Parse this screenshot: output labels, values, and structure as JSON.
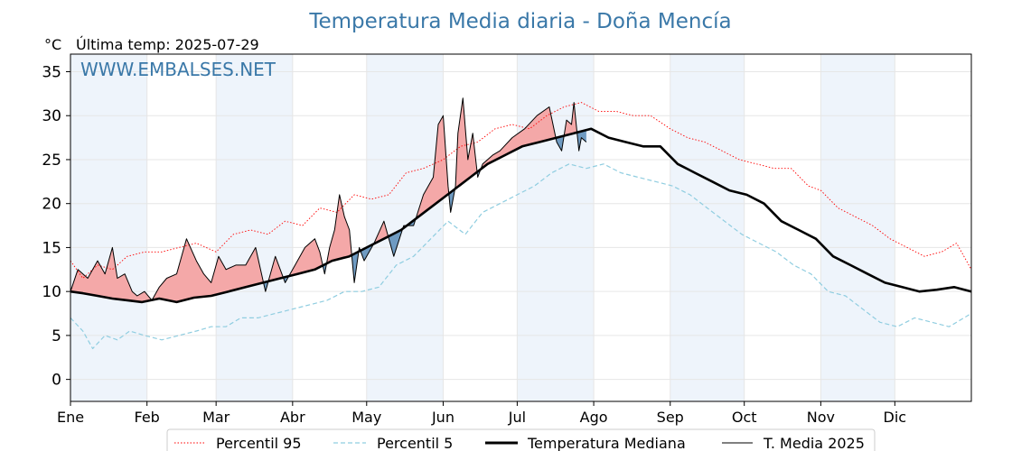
{
  "title": "Temperatura Media diaria - Doña Mencía",
  "unit": "°C",
  "last_temp": "Última temp: 2025-07-29",
  "watermark": "WWW.EMBALSES.NET",
  "colors": {
    "p95": "#ff0000",
    "p5": "#8fcde0",
    "median": "#000000",
    "year": "#000000",
    "above_fill": "#f4a8a8",
    "below_fill": "#6f9bc2",
    "band": "#eef4fb"
  },
  "chart_data": {
    "type": "line",
    "xlabel": "",
    "ylabel": "",
    "ylim": [
      -2.5,
      37
    ],
    "xlim": [
      1,
      366
    ],
    "grid": true,
    "legend_position": "bottom",
    "y_ticks": [
      0,
      5,
      10,
      15,
      20,
      25,
      30,
      35
    ],
    "months": [
      {
        "label": "Ene",
        "day": 1
      },
      {
        "label": "Feb",
        "day": 32
      },
      {
        "label": "Mar",
        "day": 60
      },
      {
        "label": "Abr",
        "day": 91
      },
      {
        "label": "May",
        "day": 121
      },
      {
        "label": "Jun",
        "day": 152
      },
      {
        "label": "Jul",
        "day": 182
      },
      {
        "label": "Ago",
        "day": 213
      },
      {
        "label": "Sep",
        "day": 244
      },
      {
        "label": "Oct",
        "day": 274
      },
      {
        "label": "Nov",
        "day": 305
      },
      {
        "label": "Dic",
        "day": 335
      }
    ],
    "series": [
      {
        "name": "Percentil 95",
        "style": "dotted",
        "x": [
          1,
          6,
          12,
          18,
          24,
          31,
          38,
          45,
          52,
          60,
          67,
          74,
          81,
          88,
          95,
          102,
          109,
          116,
          123,
          130,
          137,
          144,
          152,
          159,
          166,
          173,
          180,
          187,
          194,
          201,
          208,
          215,
          222,
          229,
          236,
          244,
          251,
          258,
          265,
          272,
          279,
          286,
          293,
          300,
          305,
          312,
          319,
          326,
          333,
          340,
          347,
          354,
          360,
          366
        ],
        "y": [
          13.5,
          11.5,
          13,
          12.5,
          14,
          14.5,
          14.5,
          15,
          15.5,
          14.5,
          16.5,
          17,
          16.5,
          18,
          17.5,
          19.5,
          19,
          21,
          20.5,
          21,
          23.5,
          24,
          25,
          26.5,
          27,
          28.5,
          29,
          28.5,
          30,
          31,
          31.5,
          30.5,
          30.5,
          30,
          30,
          28.5,
          27.5,
          27,
          26,
          25,
          24.5,
          24,
          24,
          22,
          21.5,
          19.5,
          18.5,
          17.5,
          16,
          15,
          14,
          14.5,
          15.5,
          12.5
        ]
      },
      {
        "name": "Percentil 5",
        "style": "dashed",
        "x": [
          1,
          6,
          10,
          15,
          20,
          25,
          31,
          38,
          45,
          52,
          58,
          64,
          70,
          77,
          84,
          91,
          98,
          105,
          112,
          119,
          126,
          133,
          140,
          147,
          154,
          161,
          168,
          175,
          182,
          189,
          196,
          203,
          210,
          217,
          224,
          231,
          238,
          245,
          252,
          259,
          266,
          273,
          280,
          287,
          294,
          301,
          308,
          315,
          322,
          329,
          336,
          343,
          350,
          357,
          366
        ],
        "y": [
          7,
          5.5,
          3.5,
          5,
          4.5,
          5.5,
          5,
          4.5,
          5,
          5.5,
          6,
          6,
          7,
          7,
          7.5,
          8,
          8.5,
          9,
          10,
          10,
          10.5,
          13,
          14,
          16,
          18,
          16.5,
          19,
          20,
          21,
          22,
          23.5,
          24.5,
          24,
          24.5,
          23.5,
          23,
          22.5,
          22,
          21,
          19.5,
          18,
          16.5,
          15.5,
          14.5,
          13,
          12,
          10,
          9.5,
          8,
          6.5,
          6,
          7,
          6.5,
          6,
          7.5
        ]
      },
      {
        "name": "Temperatura Mediana",
        "style": "thick",
        "x": [
          1,
          6,
          12,
          18,
          24,
          30,
          37,
          44,
          51,
          58,
          65,
          72,
          79,
          86,
          93,
          100,
          107,
          114,
          121,
          128,
          135,
          142,
          149,
          156,
          163,
          170,
          177,
          184,
          191,
          198,
          205,
          212,
          219,
          226,
          233,
          240,
          247,
          254,
          261,
          268,
          275,
          282,
          289,
          296,
          303,
          310,
          317,
          324,
          331,
          338,
          345,
          352,
          359,
          366
        ],
        "y": [
          10,
          9.8,
          9.5,
          9.2,
          9,
          8.8,
          9.2,
          8.8,
          9.3,
          9.5,
          10,
          10.5,
          11,
          11.5,
          12,
          12.5,
          13.5,
          14,
          15,
          16,
          17,
          18.5,
          20,
          21.5,
          23,
          24.5,
          25.5,
          26.5,
          27,
          27.5,
          28,
          28.5,
          27.5,
          27,
          26.5,
          26.5,
          24.5,
          23.5,
          22.5,
          21.5,
          21,
          20,
          18,
          17,
          16,
          14,
          13,
          12,
          11,
          10.5,
          10,
          10.2,
          10.5,
          10
        ]
      },
      {
        "name": "T. Media 2025",
        "style": "thin",
        "x": [
          1,
          4,
          8,
          12,
          15,
          18,
          20,
          23,
          26,
          28,
          31,
          34,
          37,
          40,
          44,
          48,
          52,
          55,
          58,
          61,
          64,
          68,
          72,
          76,
          80,
          84,
          88,
          92,
          96,
          100,
          102,
          104,
          106,
          108,
          110,
          112,
          114,
          116,
          118,
          120,
          124,
          128,
          132,
          136,
          140,
          144,
          148,
          150,
          152,
          154,
          155,
          157,
          158,
          160,
          162,
          164,
          166,
          168,
          170,
          172,
          175,
          180,
          185,
          190,
          195,
          198,
          200,
          202,
          204,
          205,
          207,
          208,
          210
        ],
        "y": [
          10,
          12.5,
          11.5,
          13.5,
          12,
          15,
          11.5,
          12,
          10,
          9.5,
          10,
          9,
          10.5,
          11.5,
          12,
          16,
          13.5,
          12,
          11,
          14,
          12.5,
          13,
          13,
          15,
          10,
          14,
          11,
          13,
          15,
          16,
          14.5,
          12,
          15,
          17,
          21,
          18.5,
          17,
          11,
          15,
          13.5,
          15.5,
          18,
          14,
          17.5,
          17.5,
          21,
          23,
          29,
          30,
          22,
          19,
          22,
          28,
          32,
          25,
          28,
          23,
          24.5,
          25,
          25.5,
          26,
          27.5,
          28.5,
          30,
          31,
          27,
          26,
          29.5,
          29,
          31.5,
          26,
          27.5,
          27
        ]
      }
    ]
  },
  "legend": [
    {
      "label": "Percentil 95",
      "style": "dotted"
    },
    {
      "label": "Percentil 5",
      "style": "dashed"
    },
    {
      "label": "Temperatura Mediana",
      "style": "thick"
    },
    {
      "label": "T. Media 2025",
      "style": "thin"
    }
  ]
}
